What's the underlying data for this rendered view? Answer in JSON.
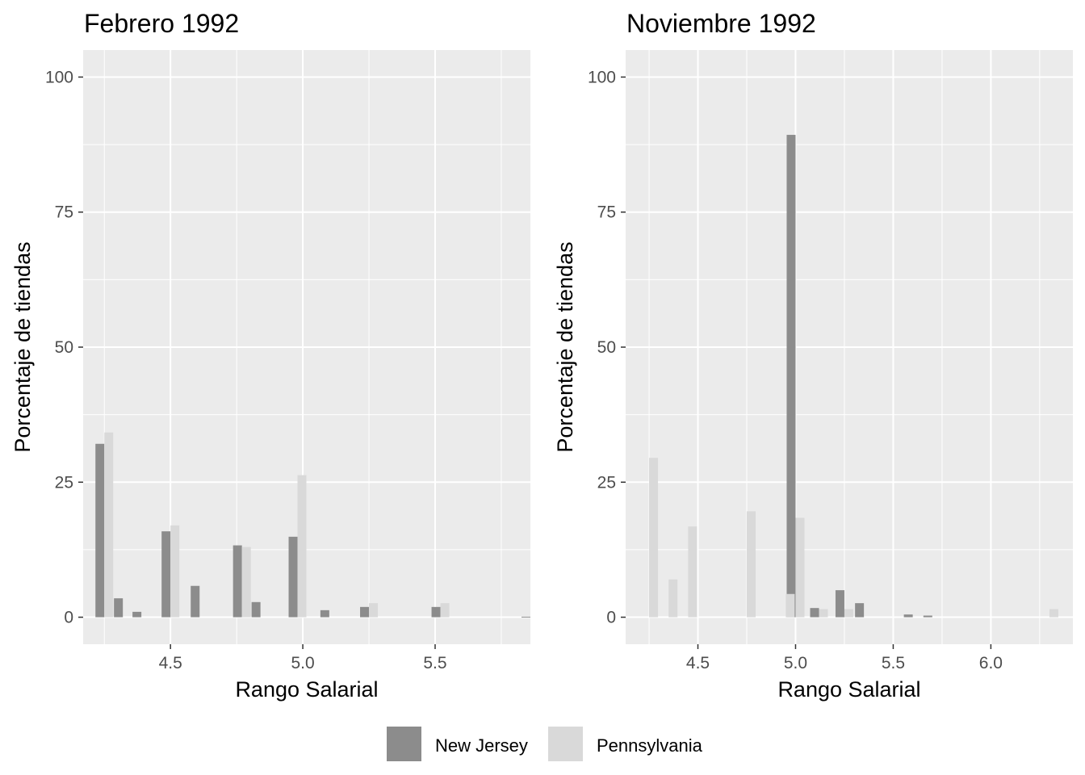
{
  "colors": {
    "panel_bg": "#ebebeb",
    "grid_major": "#ffffff",
    "new_jersey": "#8c8c8c",
    "pennsylvania": "#d9d9d9"
  },
  "legend": {
    "items": [
      {
        "label": "New Jersey",
        "color": "#8c8c8c"
      },
      {
        "label": "Pennsylvania",
        "color": "#d9d9d9"
      }
    ],
    "placement": "bottom"
  },
  "chart_data": [
    {
      "type": "bar",
      "title": "Febrero 1992",
      "xlabel": "Rango Salarial",
      "ylabel": "Porcentaje de tiendas",
      "xlim": [
        4.17,
        5.86
      ],
      "ylim": [
        -5,
        105
      ],
      "xticks": [
        {
          "value": 4.5,
          "label": "4.5"
        },
        {
          "value": 5.0,
          "label": "5.0"
        },
        {
          "value": 5.5,
          "label": "5.5"
        }
      ],
      "yticks": [
        {
          "value": 0,
          "label": "0"
        },
        {
          "value": 25,
          "label": "25"
        },
        {
          "value": 50,
          "label": "50"
        },
        {
          "value": 75,
          "label": "75"
        },
        {
          "value": 100,
          "label": "100"
        }
      ],
      "grid": true,
      "series": [
        {
          "name": "New Jersey",
          "color": "#8c8c8c",
          "x": [
            4.25,
            4.32,
            4.39,
            4.5,
            4.61,
            4.77,
            4.84,
            4.98,
            5.1,
            5.25,
            5.52,
            5.87
          ],
          "values": [
            32.1,
            3.5,
            1.0,
            15.9,
            5.8,
            13.3,
            2.8,
            14.9,
            1.3,
            1.9,
            1.9,
            0.1
          ]
        },
        {
          "name": "Pennsylvania",
          "color": "#d9d9d9",
          "x": [
            4.25,
            4.5,
            4.77,
            4.98,
            5.25,
            5.52
          ],
          "values": [
            34.2,
            17.0,
            13.0,
            26.3,
            2.6,
            2.6
          ]
        }
      ]
    },
    {
      "type": "bar",
      "title": "Noviembre 1992",
      "xlabel": "Rango Salarial",
      "ylabel": "Porcentaje de tiendas",
      "xlim": [
        4.13,
        6.42
      ],
      "ylim": [
        -5,
        105
      ],
      "xticks": [
        {
          "value": 4.5,
          "label": "4.5"
        },
        {
          "value": 5.0,
          "label": "5.0"
        },
        {
          "value": 5.5,
          "label": "5.5"
        },
        {
          "value": 6.0,
          "label": "6.0"
        }
      ],
      "yticks": [
        {
          "value": 0,
          "label": "0"
        },
        {
          "value": 25,
          "label": "25"
        },
        {
          "value": 50,
          "label": "50"
        },
        {
          "value": 75,
          "label": "75"
        },
        {
          "value": 100,
          "label": "100"
        }
      ],
      "grid": true,
      "series": [
        {
          "name": "New Jersey",
          "color": "#8c8c8c",
          "x": [
            5.0,
            5.12,
            5.25,
            5.35,
            5.6,
            5.7
          ],
          "values": [
            89.3,
            1.7,
            5.0,
            2.6,
            0.5,
            0.3
          ]
        },
        {
          "name": "Pennsylvania",
          "color": "#d9d9d9",
          "x": [
            4.25,
            4.35,
            4.45,
            4.75,
            4.95,
            5.0,
            5.12,
            5.25,
            6.3
          ],
          "values": [
            29.5,
            7.0,
            16.8,
            19.6,
            4.3,
            18.4,
            1.5,
            1.5,
            1.5
          ]
        }
      ]
    }
  ]
}
